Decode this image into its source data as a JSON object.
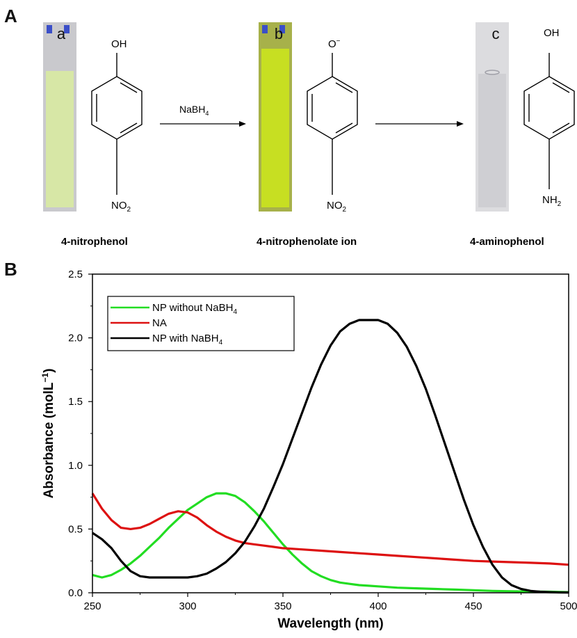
{
  "panel_a": {
    "letter": "A",
    "samples": [
      {
        "label": "a",
        "compound": "4-nitrophenol",
        "top_group": "OH",
        "bottom_group": "NO",
        "bottom_sub": "2",
        "liquid_color": "#d8e9a3"
      },
      {
        "label": "b",
        "compound": "4-nitrophenolate ion",
        "top_group": "O",
        "top_sup": "−",
        "bottom_group": "NO",
        "bottom_sub": "2",
        "liquid_color": "#c7df22"
      },
      {
        "label": "c",
        "compound": "4-aminophenol",
        "top_group": "OH",
        "bottom_group": "NH",
        "bottom_sub": "2",
        "liquid_color": "#cfcfd3"
      }
    ],
    "arrow_reagent": "NaBH",
    "arrow_reagent_sub": "4"
  },
  "panel_b": {
    "letter": "B"
  },
  "chart_data": {
    "type": "line",
    "title": "",
    "xlabel": "Wavelength (nm)",
    "ylabel": "Absorbance (molL",
    "ylabel_sup": "−1",
    "ylabel_close": ")",
    "xlim": [
      250,
      500
    ],
    "ylim": [
      0.0,
      2.5
    ],
    "xticks": [
      250,
      300,
      350,
      400,
      450,
      500
    ],
    "xtick_labels": [
      "250",
      "300",
      "350",
      "400",
      "450",
      "500"
    ],
    "yticks": [
      0.0,
      0.5,
      1.0,
      1.5,
      2.0,
      2.5
    ],
    "ytick_labels": [
      "0.0",
      "0.5",
      "1.0",
      "1.5",
      "2.0",
      "2.5"
    ],
    "grid": false,
    "legend_position": "top-left",
    "series": [
      {
        "name": "NP without NaBH",
        "name_sub": "4",
        "color": "#22dd22",
        "x": [
          250,
          255,
          260,
          265,
          270,
          275,
          280,
          285,
          290,
          295,
          300,
          305,
          310,
          315,
          320,
          325,
          330,
          335,
          340,
          345,
          350,
          355,
          360,
          365,
          370,
          375,
          380,
          385,
          390,
          395,
          400,
          410,
          420,
          430,
          440,
          450,
          460,
          470,
          480,
          490,
          500
        ],
        "y": [
          0.14,
          0.12,
          0.14,
          0.18,
          0.23,
          0.29,
          0.36,
          0.43,
          0.51,
          0.58,
          0.65,
          0.7,
          0.75,
          0.78,
          0.78,
          0.76,
          0.71,
          0.64,
          0.56,
          0.47,
          0.38,
          0.3,
          0.23,
          0.17,
          0.13,
          0.1,
          0.08,
          0.07,
          0.06,
          0.055,
          0.05,
          0.04,
          0.035,
          0.03,
          0.025,
          0.02,
          0.015,
          0.012,
          0.01,
          0.008,
          0.005
        ]
      },
      {
        "name": "NA",
        "color": "#dd1111",
        "x": [
          250,
          255,
          260,
          265,
          270,
          275,
          280,
          285,
          290,
          295,
          300,
          305,
          310,
          315,
          320,
          325,
          330,
          335,
          340,
          345,
          350,
          360,
          370,
          380,
          390,
          400,
          410,
          420,
          430,
          440,
          450,
          460,
          470,
          480,
          490,
          500
        ],
        "y": [
          0.78,
          0.66,
          0.57,
          0.51,
          0.5,
          0.51,
          0.54,
          0.58,
          0.62,
          0.64,
          0.63,
          0.59,
          0.53,
          0.48,
          0.44,
          0.41,
          0.39,
          0.38,
          0.37,
          0.36,
          0.35,
          0.34,
          0.33,
          0.32,
          0.31,
          0.3,
          0.29,
          0.28,
          0.27,
          0.26,
          0.25,
          0.245,
          0.24,
          0.235,
          0.23,
          0.22
        ]
      },
      {
        "name": "NP with NaBH",
        "name_sub": "4",
        "color": "#000000",
        "x": [
          250,
          255,
          260,
          265,
          270,
          275,
          280,
          285,
          290,
          295,
          300,
          305,
          310,
          315,
          320,
          325,
          330,
          335,
          340,
          345,
          350,
          355,
          360,
          365,
          370,
          375,
          380,
          385,
          390,
          395,
          400,
          405,
          410,
          415,
          420,
          425,
          430,
          435,
          440,
          445,
          450,
          455,
          460,
          465,
          470,
          475,
          480,
          485,
          490,
          495,
          500
        ],
        "y": [
          0.47,
          0.42,
          0.35,
          0.25,
          0.17,
          0.13,
          0.12,
          0.12,
          0.12,
          0.12,
          0.12,
          0.13,
          0.15,
          0.19,
          0.24,
          0.31,
          0.4,
          0.52,
          0.66,
          0.83,
          1.01,
          1.21,
          1.41,
          1.61,
          1.79,
          1.94,
          2.05,
          2.11,
          2.14,
          2.14,
          2.14,
          2.11,
          2.04,
          1.93,
          1.78,
          1.6,
          1.39,
          1.17,
          0.95,
          0.73,
          0.53,
          0.36,
          0.22,
          0.12,
          0.06,
          0.03,
          0.015,
          0.008,
          0.005,
          0.003,
          0.002
        ]
      }
    ]
  }
}
